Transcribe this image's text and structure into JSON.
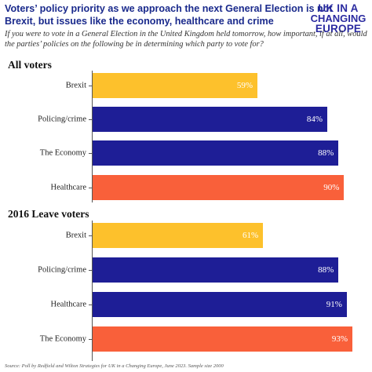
{
  "header": {
    "title_line1": "Voters’ policy priority as we approach the next General Election is not",
    "title_line2": "Brexit, but issues like the economy, healthcare and crime",
    "subtitle_line1": "If you were to vote in a General Election in the United Kingdom held tomorrow, how important, if at all, would",
    "subtitle_line2": "the parties’ policies on the following be in determining which party to vote for?"
  },
  "logo": {
    "line1": "UK IN A",
    "line2": "CHANGING",
    "line3": "EUROPE"
  },
  "source": "Source: Poll by Redfield and Wilton Strategies for UK in a Changing Europe, June 2023. Sample size 2000",
  "colors": {
    "brexit": "#FDC12C",
    "policy": "#1E1E96",
    "top": "#F9603A",
    "title": "#1a2a8c"
  },
  "chart_data": [
    {
      "type": "bar",
      "orientation": "horizontal",
      "title": "All voters",
      "categories": [
        "Brexit",
        "Policing/crime",
        "The Economy",
        "Healthcare"
      ],
      "values": [
        59,
        84,
        88,
        90
      ],
      "value_labels": [
        "59%",
        "84%",
        "88%",
        "90%"
      ],
      "bar_colors": [
        "#FDC12C",
        "#1E1E96",
        "#1E1E96",
        "#F9603A"
      ],
      "xlim": [
        0,
        100
      ],
      "grid": false
    },
    {
      "type": "bar",
      "orientation": "horizontal",
      "title": "2016 Leave voters",
      "categories": [
        "Brexit",
        "Policing/crime",
        "Healthcare",
        "The Economy"
      ],
      "values": [
        61,
        88,
        91,
        93
      ],
      "value_labels": [
        "61%",
        "88%",
        "91%",
        "93%"
      ],
      "bar_colors": [
        "#FDC12C",
        "#1E1E96",
        "#1E1E96",
        "#F9603A"
      ],
      "xlim": [
        0,
        100
      ],
      "grid": false
    }
  ]
}
